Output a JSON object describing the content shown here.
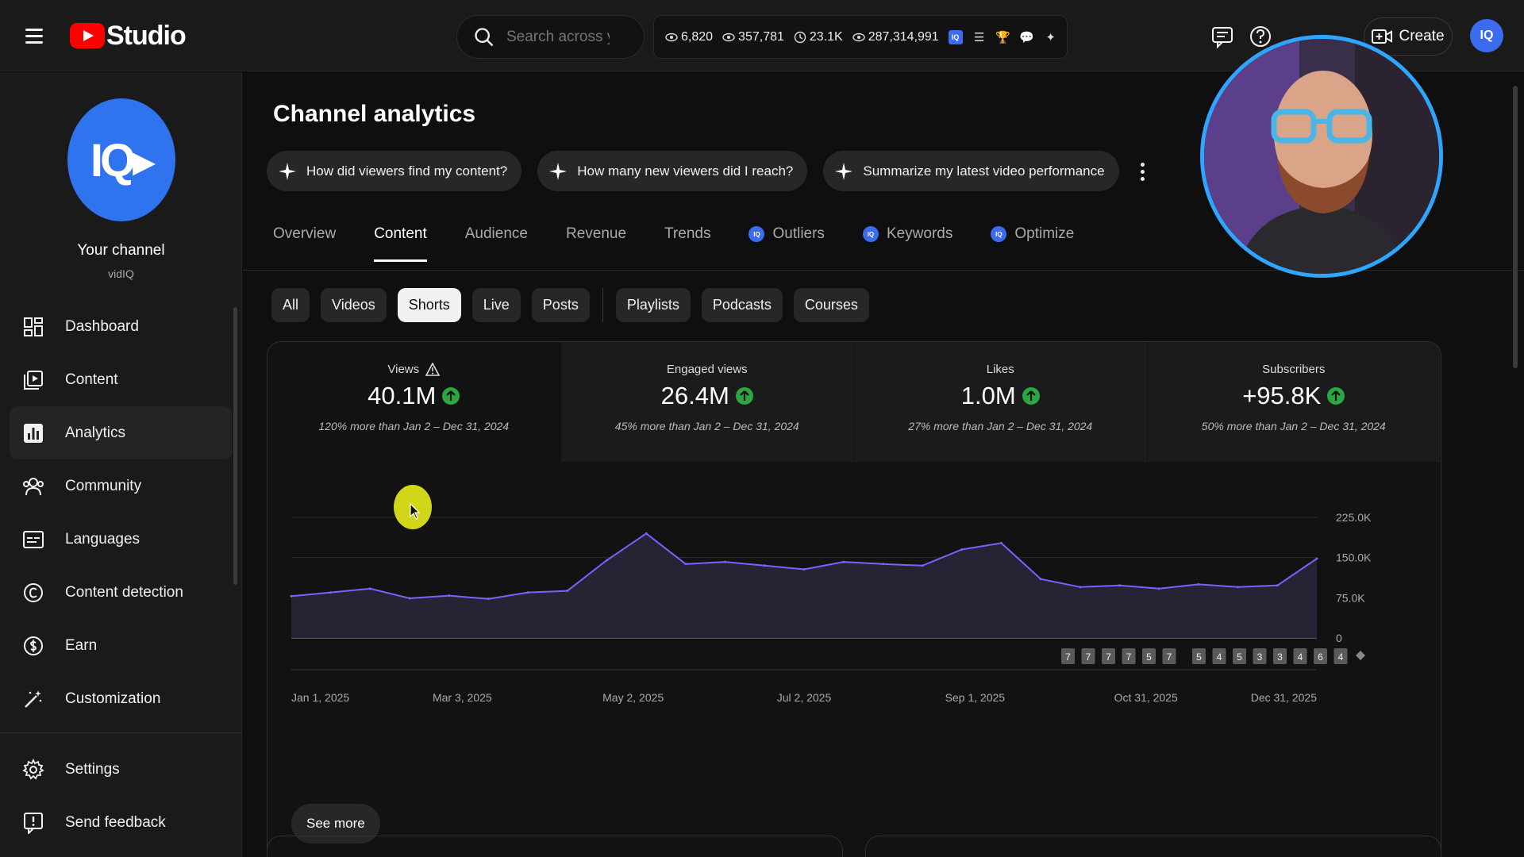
{
  "header": {
    "search_placeholder": "Search across your channel",
    "stats": [
      {
        "icon": "eye-icon",
        "value": "6,820"
      },
      {
        "icon": "eye-icon",
        "value": "357,781"
      },
      {
        "icon": "clock-icon",
        "value": "23.1K"
      },
      {
        "icon": "eye-icon",
        "value": "287,314,991"
      }
    ],
    "create_label": "Create"
  },
  "sidebar": {
    "channel_name": "Your channel",
    "channel_handle": "vidIQ",
    "items": [
      {
        "label": "Dashboard",
        "icon": "dashboard-icon"
      },
      {
        "label": "Content",
        "icon": "content-icon"
      },
      {
        "label": "Analytics",
        "icon": "analytics-icon",
        "active": true
      },
      {
        "label": "Community",
        "icon": "community-icon"
      },
      {
        "label": "Languages",
        "icon": "languages-icon"
      },
      {
        "label": "Content detection",
        "icon": "copyright-icon"
      },
      {
        "label": "Earn",
        "icon": "dollar-icon"
      },
      {
        "label": "Customization",
        "icon": "magic-wand-icon"
      }
    ],
    "bottom_items": [
      {
        "label": "Settings",
        "icon": "gear-icon"
      },
      {
        "label": "Send feedback",
        "icon": "feedback-icon"
      }
    ]
  },
  "main": {
    "title": "Channel analytics",
    "ask_chips": [
      "How did viewers find my content?",
      "How many new viewers did I reach?",
      "Summarize my latest video performance"
    ],
    "tabs": [
      "Overview",
      "Content",
      "Audience",
      "Revenue",
      "Trends",
      "Outliers",
      "Keywords",
      "Optimize"
    ],
    "active_tab": "Content",
    "filters": [
      "All",
      "Videos",
      "Shorts",
      "Live",
      "Posts",
      "Playlists",
      "Podcasts",
      "Courses"
    ],
    "active_filter": "Shorts",
    "metrics": [
      {
        "label": "Views",
        "value": "40.1M",
        "delta": "120% more than Jan 2 – Dec 31, 2024"
      },
      {
        "label": "Engaged views",
        "value": "26.4M",
        "delta": "45% more than Jan 2 – Dec 31, 2024"
      },
      {
        "label": "Likes",
        "value": "1.0M",
        "delta": "27% more than Jan 2 – Dec 31, 2024"
      },
      {
        "label": "Subscribers",
        "value": "+95.8K",
        "delta": "50% more than Jan 2 – Dec 31, 2024"
      }
    ],
    "see_more": "See more"
  },
  "chart_data": {
    "type": "line",
    "x_tick_labels": [
      "Jan 1, 2025",
      "Mar 3, 2025",
      "May 2, 2025",
      "Jul 2, 2025",
      "Sep 1, 2025",
      "Oct 31, 2025",
      "Dec 31, 2025"
    ],
    "y_tick_labels": [
      "225.0K",
      "150.0K",
      "75.0K",
      "0"
    ],
    "ylim": [
      0,
      225000
    ],
    "series": [
      {
        "color": "#7b61ff",
        "x": [
          "2025-01-01",
          "2025-01-15",
          "2025-01-29",
          "2025-02-12",
          "2025-02-26",
          "2025-03-12",
          "2025-03-26",
          "2025-04-09",
          "2025-04-23",
          "2025-05-07",
          "2025-05-21",
          "2025-06-04",
          "2025-06-18",
          "2025-07-02",
          "2025-07-16",
          "2025-07-30",
          "2025-08-13",
          "2025-08-27",
          "2025-09-10",
          "2025-09-24",
          "2025-10-08",
          "2025-10-22",
          "2025-11-05",
          "2025-11-19",
          "2025-12-03",
          "2025-12-17",
          "2025-12-31"
        ],
        "values": [
          78000,
          85000,
          92000,
          74000,
          79000,
          73000,
          85000,
          88000,
          145000,
          195000,
          138000,
          142000,
          135000,
          128000,
          142000,
          138000,
          135000,
          165000,
          177000,
          110000,
          95000,
          98000,
          92000,
          100000,
          95000,
          98000,
          148000
        ]
      }
    ],
    "markers": [
      "7",
      "7",
      "7",
      "7",
      "5",
      "7",
      "5",
      "4",
      "5",
      "3",
      "3",
      "4",
      "6",
      "4"
    ],
    "grid": true
  }
}
